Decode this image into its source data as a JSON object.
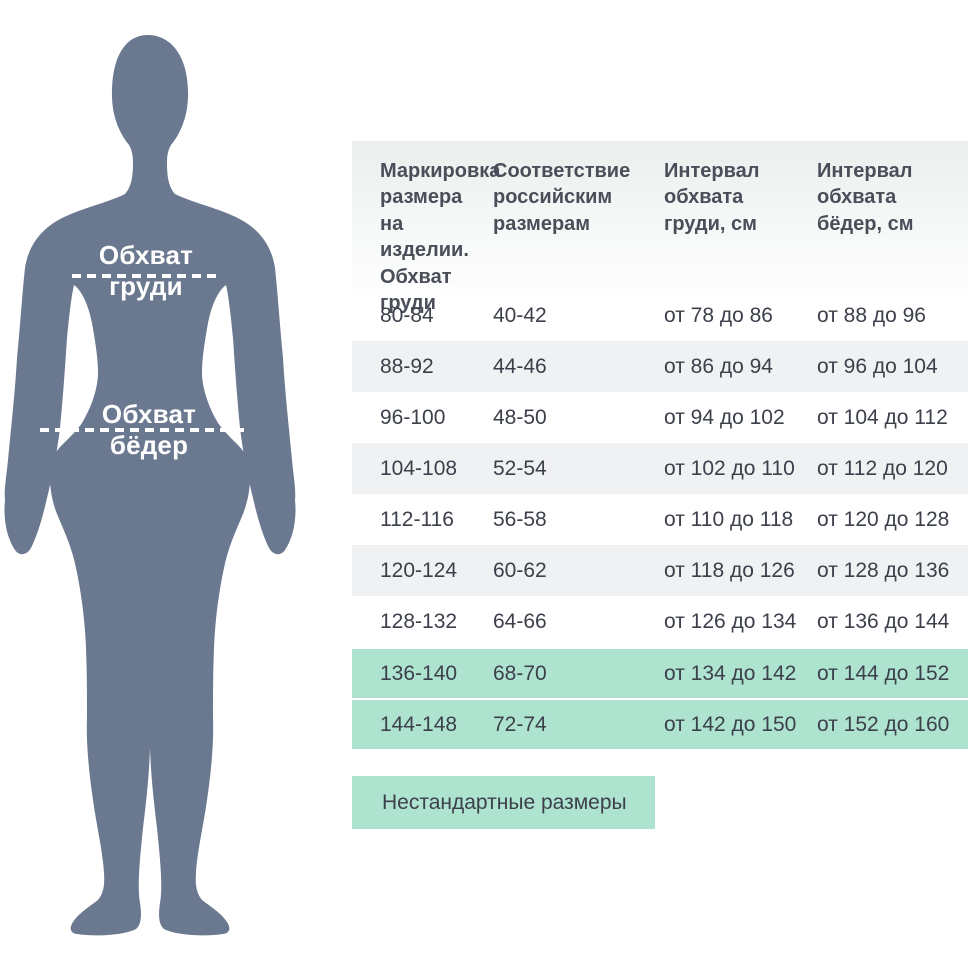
{
  "figure": {
    "chest_label": "Обхват груди",
    "hips_label": "Обхват бёдер"
  },
  "table": {
    "headers": [
      "Маркировка\nразмера\nна изделии.\nОбхват\nгруди",
      "Соответствие\nроссийским\nразмерам",
      "Интервал\nобхвата\nгруди, см",
      "Интервал\nобхвата\nбёдер, см"
    ],
    "rows": [
      {
        "size": "80-84",
        "ru": "40-42",
        "chest": "от 78 до 86",
        "hips": "от 88 до 96",
        "highlight": false
      },
      {
        "size": "88-92",
        "ru": "44-46",
        "chest": "от 86 до 94",
        "hips": "от 96 до 104",
        "highlight": false
      },
      {
        "size": "96-100",
        "ru": "48-50",
        "chest": "от 94 до 102",
        "hips": "от 104 до 112",
        "highlight": false
      },
      {
        "size": "104-108",
        "ru": "52-54",
        "chest": "от 102 до 110",
        "hips": "от 112 до 120",
        "highlight": false
      },
      {
        "size": "112-116",
        "ru": "56-58",
        "chest": "от 110 до 118",
        "hips": "от 120 до 128",
        "highlight": false
      },
      {
        "size": "120-124",
        "ru": "60-62",
        "chest": "от 118 до 126",
        "hips": "от 128 до 136",
        "highlight": false
      },
      {
        "size": "128-132",
        "ru": "64-66",
        "chest": "от 126 до 134",
        "hips": "от 136 до 144",
        "highlight": false
      },
      {
        "size": "136-140",
        "ru": "68-70",
        "chest": "от 134 до 142",
        "hips": "от 144 до 152",
        "highlight": true
      },
      {
        "size": "144-148",
        "ru": "72-74",
        "chest": "от 142 до 150",
        "hips": "от 152 до 160",
        "highlight": true
      }
    ]
  },
  "legend": {
    "label": "Нестандартные размеры"
  },
  "colors": {
    "highlight_green": "#aee3d0",
    "stripe_gray": "#f0f1f3",
    "silhouette": "#6a7890",
    "text_dark": "#3c404b"
  }
}
